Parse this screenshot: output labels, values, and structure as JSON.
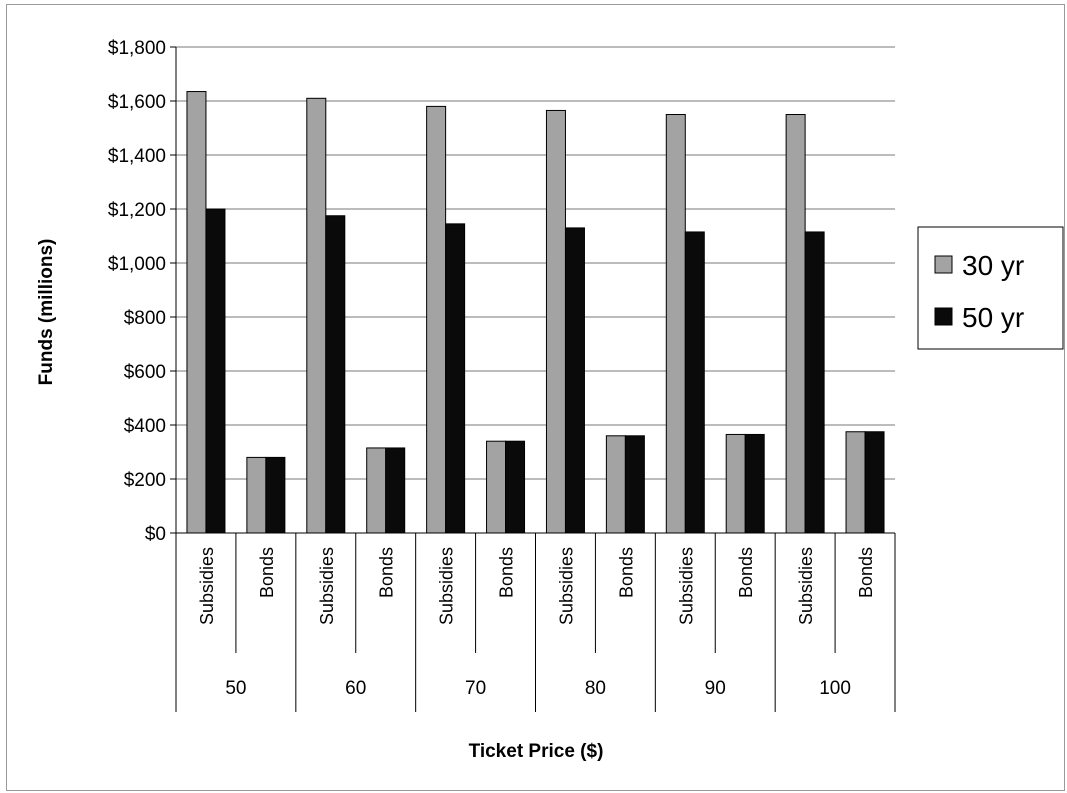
{
  "chart_data": {
    "type": "bar",
    "title": "",
    "xlabel": "Ticket Price ($)",
    "ylabel": "Funds (millions)",
    "ylim": [
      0,
      1800
    ],
    "yticks": [
      "$0",
      "$200",
      "$400",
      "$600",
      "$800",
      "$1,000",
      "$1,200",
      "$1,400",
      "$1,600",
      "$1,800"
    ],
    "ytick_values": [
      0,
      200,
      400,
      600,
      800,
      1000,
      1200,
      1400,
      1600,
      1800
    ],
    "groups": [
      "50",
      "60",
      "70",
      "80",
      "90",
      "100"
    ],
    "subcategories": [
      "Subsidies",
      "Bonds"
    ],
    "series": [
      {
        "name": "30 yr",
        "color": "#a3a3a3",
        "values": [
          1635,
          280,
          1610,
          315,
          1580,
          340,
          1565,
          360,
          1550,
          365,
          1550,
          375
        ]
      },
      {
        "name": "50 yr",
        "color": "#0a0a0a",
        "values": [
          1200,
          280,
          1175,
          315,
          1145,
          340,
          1130,
          360,
          1115,
          365,
          1115,
          375
        ]
      }
    ],
    "grid": true,
    "legend_position": "right"
  }
}
